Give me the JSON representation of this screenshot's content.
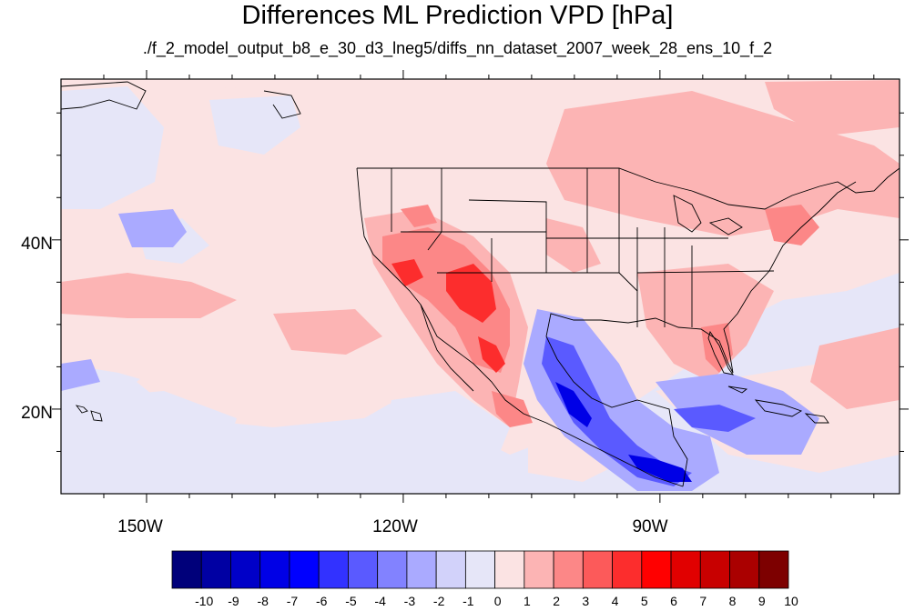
{
  "title": "Differences ML Prediction VPD [hPa]",
  "subtitle": "./f_2_model_output_b8_e_30_d3_lneg5/diffs_nn_dataset_2007_week_28_ens_10_f_2",
  "map": {
    "projection": "cylindrical equidistant",
    "lon_range": [
      -160,
      -62
    ],
    "lat_range": [
      10,
      59
    ],
    "lon_ticks": [
      {
        "value": -150,
        "label": "150W"
      },
      {
        "value": -120,
        "label": "120W"
      },
      {
        "value": -90,
        "label": "90W"
      }
    ],
    "lat_ticks": [
      {
        "value": 40,
        "label": "40N"
      },
      {
        "value": 20,
        "label": "20N"
      }
    ],
    "field_description_colors": {
      "background": "#e6e6f8",
      "land_outline": "#000000"
    }
  },
  "colorbar": {
    "labels": [
      "-10",
      "-9",
      "-8",
      "-7",
      "-6",
      "-5",
      "-4",
      "-3",
      "-2",
      "-1",
      "0",
      "1",
      "2",
      "3",
      "4",
      "5",
      "6",
      "7",
      "8",
      "9",
      "10"
    ],
    "colors": [
      "#00007a",
      "#0000a3",
      "#0000c8",
      "#0000e6",
      "#0000ff",
      "#3232ff",
      "#5a5aff",
      "#8282ff",
      "#aaaaff",
      "#d2d2fa",
      "#e6e6f8",
      "#fbe3e3",
      "#fcb4b4",
      "#fc8787",
      "#fc5a5a",
      "#fc2d2d",
      "#ff0000",
      "#e10000",
      "#c80000",
      "#aa0000",
      "#7d0000"
    ]
  }
}
